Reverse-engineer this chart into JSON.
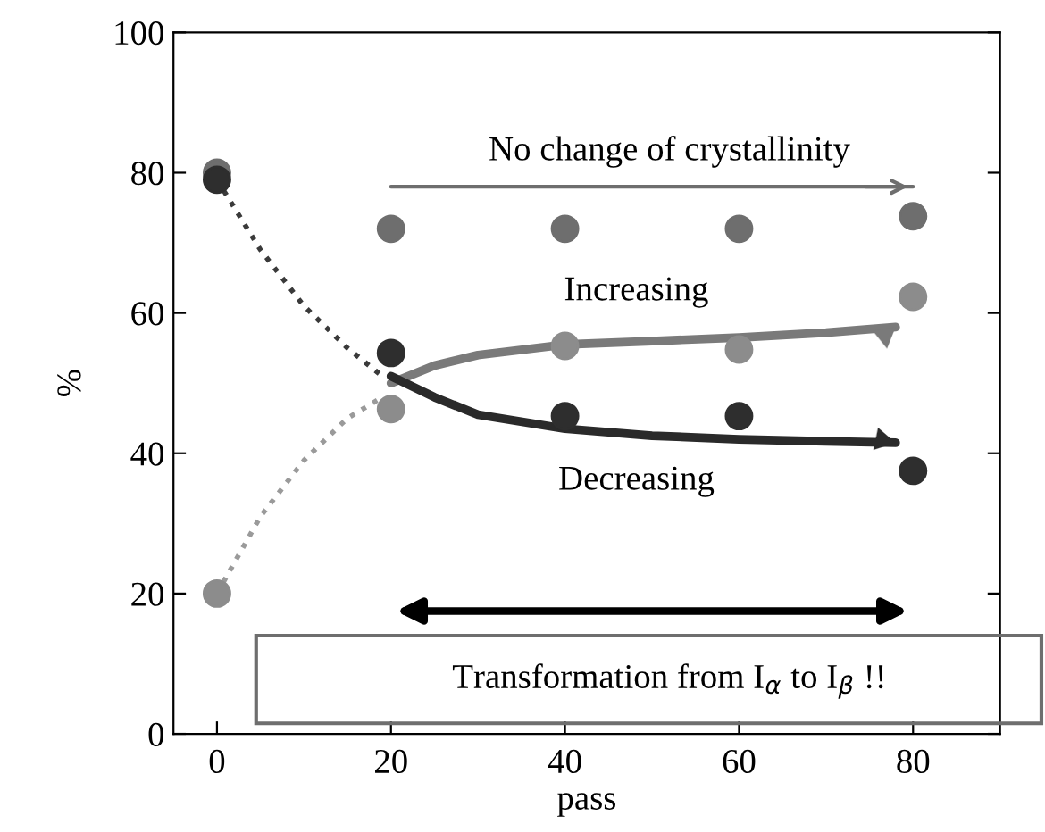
{
  "chart_data": {
    "type": "scatter",
    "xlabel": "pass",
    "ylabel": "%",
    "x": [
      0,
      20,
      40,
      60,
      80
    ],
    "series": [
      {
        "color": "#6e6e6e",
        "values": [
          80,
          72,
          72,
          72,
          73.8
        ]
      },
      {
        "color": "#8c8c8c",
        "values": [
          20,
          46.3,
          55.3,
          54.8,
          62.3
        ]
      },
      {
        "color": "#2e2e2e",
        "values": [
          79,
          54.3,
          45.3,
          45.3,
          37.5
        ]
      },
      {
        "type": "line",
        "line_style": "dotted",
        "marker": "none",
        "color": "#3a3a3a",
        "x": [
          0,
          5,
          10,
          15,
          19
        ],
        "values": [
          79,
          69,
          61,
          55,
          51
        ]
      },
      {
        "type": "line",
        "line_style": "dotted",
        "marker": "none",
        "color": "#9a9a9a",
        "x": [
          0,
          5,
          10,
          15,
          19
        ],
        "values": [
          20,
          31,
          39,
          45,
          48
        ]
      },
      {
        "type": "line",
        "line_style": "solid",
        "marker": "none",
        "color": "#7a7a7a",
        "x": [
          20,
          25,
          30,
          40,
          50,
          60,
          70,
          78
        ],
        "values": [
          50,
          52.5,
          54,
          55.5,
          56,
          56.5,
          57.2,
          58
        ]
      },
      {
        "type": "line",
        "line_style": "solid",
        "marker": "none",
        "color": "#6e6e6e",
        "x": [
          20,
          80
        ],
        "values": [
          78,
          78
        ]
      },
      {
        "type": "line",
        "line_style": "solid",
        "marker": "none",
        "color": "#2a2a2a",
        "x": [
          20,
          25,
          30,
          40,
          50,
          60,
          70,
          78
        ],
        "values": [
          51,
          48,
          45.5,
          43.5,
          42.5,
          42,
          41.7,
          41.5
        ]
      }
    ],
    "marker": "circle",
    "xlim": [
      -5,
      90
    ],
    "ylim": [
      0,
      100
    ],
    "xticks": [
      0,
      20,
      40,
      60,
      80
    ],
    "yticks": [
      0,
      20,
      40,
      60,
      80,
      100
    ],
    "grid": false,
    "legend": false,
    "annotations": [
      "No change of crystallinity",
      "Increasing",
      "Decreasing",
      "Transformation from I$_{α}$ to I$_{β}$ !!"
    ]
  }
}
